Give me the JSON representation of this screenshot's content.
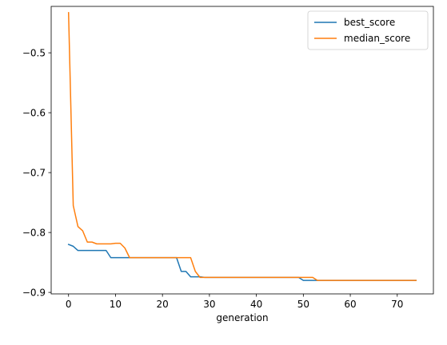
{
  "chart_data": {
    "type": "line",
    "title": "",
    "xlabel": "generation",
    "ylabel": "",
    "xlim": [
      -3.7,
      77.7
    ],
    "ylim": [
      -0.9025,
      -0.4225
    ],
    "x_ticks": [
      0,
      10,
      20,
      30,
      40,
      50,
      60,
      70
    ],
    "y_ticks": [
      -0.9,
      -0.8,
      -0.7,
      -0.6,
      -0.5
    ],
    "x_tick_labels": [
      "0",
      "10",
      "20",
      "30",
      "40",
      "50",
      "60",
      "70"
    ],
    "y_tick_labels": [
      "−0.9",
      "−0.8",
      "−0.7",
      "−0.6",
      "−0.5"
    ],
    "grid": false,
    "legend_position": "top-right",
    "series": [
      {
        "name": "best_score",
        "color": "#1f77b4",
        "x": [
          0,
          1,
          2,
          3,
          4,
          5,
          6,
          7,
          8,
          9,
          10,
          11,
          12,
          13,
          14,
          15,
          16,
          17,
          18,
          19,
          20,
          21,
          22,
          23,
          24,
          25,
          26,
          27,
          28,
          29,
          30,
          31,
          32,
          33,
          34,
          35,
          36,
          37,
          38,
          39,
          40,
          41,
          42,
          43,
          44,
          45,
          46,
          47,
          48,
          49,
          50,
          51,
          52,
          53,
          54,
          55,
          56,
          57,
          58,
          59,
          60,
          61,
          62,
          63,
          64,
          65,
          66,
          67,
          68,
          69,
          70,
          71,
          72,
          73,
          74
        ],
        "values": [
          -0.82,
          -0.823,
          -0.83,
          -0.83,
          -0.83,
          -0.83,
          -0.83,
          -0.83,
          -0.83,
          -0.842,
          -0.842,
          -0.842,
          -0.842,
          -0.842,
          -0.842,
          -0.842,
          -0.842,
          -0.842,
          -0.842,
          -0.842,
          -0.842,
          -0.842,
          -0.842,
          -0.842,
          -0.865,
          -0.865,
          -0.874,
          -0.874,
          -0.874,
          -0.875,
          -0.875,
          -0.875,
          -0.875,
          -0.875,
          -0.875,
          -0.875,
          -0.875,
          -0.875,
          -0.875,
          -0.875,
          -0.875,
          -0.875,
          -0.875,
          -0.875,
          -0.875,
          -0.875,
          -0.875,
          -0.875,
          -0.875,
          -0.875,
          -0.88,
          -0.88,
          -0.88,
          -0.88,
          -0.88,
          -0.88,
          -0.88,
          -0.88,
          -0.88,
          -0.88,
          -0.88,
          -0.88,
          -0.88,
          -0.88,
          -0.88,
          -0.88,
          -0.88,
          -0.88,
          -0.88,
          -0.88,
          -0.88,
          -0.88,
          -0.88,
          -0.88,
          -0.88
        ]
      },
      {
        "name": "median_score",
        "color": "#ff7f0e",
        "x": [
          0,
          1,
          2,
          3,
          4,
          5,
          6,
          7,
          8,
          9,
          10,
          11,
          12,
          13,
          14,
          15,
          16,
          17,
          18,
          19,
          20,
          21,
          22,
          23,
          24,
          25,
          26,
          27,
          28,
          29,
          30,
          31,
          32,
          33,
          34,
          35,
          36,
          37,
          38,
          39,
          40,
          41,
          42,
          43,
          44,
          45,
          46,
          47,
          48,
          49,
          50,
          51,
          52,
          53,
          54,
          55,
          56,
          57,
          58,
          59,
          60,
          61,
          62,
          63,
          64,
          65,
          66,
          67,
          68,
          69,
          70,
          71,
          72,
          73,
          74
        ],
        "values": [
          -0.433,
          -0.755,
          -0.79,
          -0.797,
          -0.816,
          -0.816,
          -0.819,
          -0.819,
          -0.819,
          -0.819,
          -0.818,
          -0.818,
          -0.826,
          -0.842,
          -0.842,
          -0.842,
          -0.842,
          -0.842,
          -0.842,
          -0.842,
          -0.842,
          -0.842,
          -0.842,
          -0.842,
          -0.842,
          -0.842,
          -0.842,
          -0.865,
          -0.875,
          -0.875,
          -0.875,
          -0.875,
          -0.875,
          -0.875,
          -0.875,
          -0.875,
          -0.875,
          -0.875,
          -0.875,
          -0.875,
          -0.875,
          -0.875,
          -0.875,
          -0.875,
          -0.875,
          -0.875,
          -0.875,
          -0.875,
          -0.875,
          -0.875,
          -0.875,
          -0.875,
          -0.875,
          -0.88,
          -0.88,
          -0.88,
          -0.88,
          -0.88,
          -0.88,
          -0.88,
          -0.88,
          -0.88,
          -0.88,
          -0.88,
          -0.88,
          -0.88,
          -0.88,
          -0.88,
          -0.88,
          -0.88,
          -0.88,
          -0.88,
          -0.88,
          -0.88,
          -0.88
        ]
      }
    ]
  }
}
